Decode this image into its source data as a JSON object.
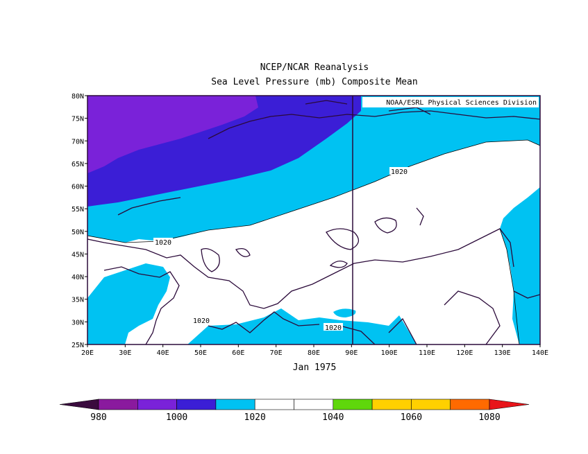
{
  "title": "NCEP/NCAR Reanalysis",
  "subtitle": "Sea Level Pressure (mb) Composite Mean",
  "credit": "NOAA/ESRL Physical Sciences Division",
  "date_label": "Jan 1975",
  "x_ticks": [
    "20E",
    "30E",
    "40E",
    "50E",
    "60E",
    "70E",
    "80E",
    "90E",
    "100E",
    "110E",
    "120E",
    "130E",
    "140E"
  ],
  "y_ticks": [
    "80N",
    "75N",
    "70N",
    "65N",
    "60N",
    "55N",
    "50N",
    "45N",
    "40N",
    "35N",
    "30N",
    "25N"
  ],
  "contour_labels": [
    "1020",
    "1020",
    "1020",
    "1020"
  ],
  "colorbar": {
    "labels": [
      "980",
      "1000",
      "1020",
      "1040",
      "1060",
      "1080"
    ],
    "colors": [
      "#3a0b3e",
      "#8a1a9e",
      "#7a22d9",
      "#3b1ed6",
      "#00c2f2",
      "#ffffff",
      "#ffffff",
      "#5fd70b",
      "#ffd000",
      "#ffd000",
      "#ff6a00",
      "#e8141a"
    ]
  },
  "fill_colors": {
    "purple": "#8a1a9e",
    "violet": "#7a22d9",
    "indigo": "#3b1ed6",
    "cyan": "#00c2f2",
    "white": "#ffffff"
  }
}
